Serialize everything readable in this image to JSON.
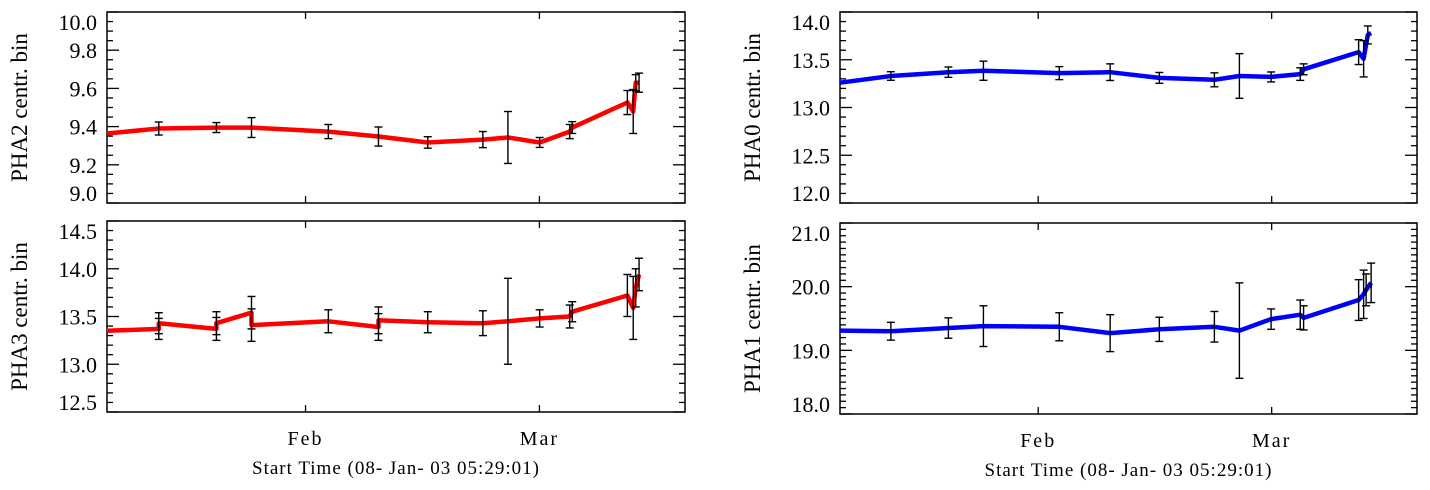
{
  "chart_data": [
    {
      "type": "line",
      "panel": "top-left",
      "ylabel": "PHA2 centr. bin",
      "xlabel": "Start Time (08- Jan- 03 05:29:01)",
      "x_units": "days since start",
      "xlim": [
        0,
        69.2
      ],
      "x_ticks": [
        {
          "value": 23.77,
          "label": "Feb"
        },
        {
          "value": 51.77,
          "label": "Mar"
        }
      ],
      "ylim": [
        9.0,
        10.0
      ],
      "y_major": 0.2,
      "y_minor": 0.05,
      "y_tick_labels": [
        "9.0",
        "9.2",
        "9.4",
        "9.6",
        "9.8",
        "10.0"
      ],
      "color": "#ff0000",
      "points": [
        [
          0,
          9.364,
          null
        ],
        [
          6.2,
          9.39,
          0.034
        ],
        [
          13.1,
          9.395,
          0.026
        ],
        [
          17.3,
          9.395,
          0.052
        ],
        [
          26.5,
          9.374,
          0.037
        ],
        [
          32.5,
          9.348,
          0.05
        ],
        [
          38.4,
          9.317,
          0.03
        ],
        [
          45.0,
          9.332,
          0.042
        ],
        [
          48.0,
          9.343,
          0.136
        ],
        [
          51.8,
          9.317,
          0.026
        ],
        [
          55.4,
          9.374,
          0.037
        ],
        [
          55.7,
          9.395,
          0.031
        ],
        [
          62.3,
          9.526,
          0.063
        ],
        [
          63.0,
          9.479,
          0.115
        ],
        [
          63.3,
          9.63,
          0.042
        ],
        [
          63.7,
          9.63,
          0.05
        ]
      ]
    },
    {
      "type": "line",
      "panel": "bottom-left",
      "ylabel": "PHA3 centr. bin",
      "xlabel": "Start Time (08- Jan- 03 05:29:01)",
      "x_units": "days since start",
      "xlim": [
        0,
        69.2
      ],
      "x_ticks": [
        {
          "value": 23.77,
          "label": "Feb"
        },
        {
          "value": 51.77,
          "label": "Mar"
        }
      ],
      "ylim": [
        12.5,
        14.5
      ],
      "y_major": 0.5,
      "y_minor": 0.1,
      "y_tick_labels": [
        "12.5",
        "13.0",
        "13.5",
        "14.0",
        "14.5"
      ],
      "color": "#ff0000",
      "points": [
        [
          0,
          13.35,
          null
        ],
        [
          6.2,
          13.37,
          0.11
        ],
        [
          6.2,
          13.43,
          0.11
        ],
        [
          13.1,
          13.37,
          0.12
        ],
        [
          13.1,
          13.43,
          0.12
        ],
        [
          17.3,
          13.54,
          0.17
        ],
        [
          17.3,
          13.41,
          0.17
        ],
        [
          26.5,
          13.45,
          0.12
        ],
        [
          32.5,
          13.39,
          0.14
        ],
        [
          32.5,
          13.46,
          0.14
        ],
        [
          38.4,
          13.44,
          0.11
        ],
        [
          45.0,
          13.43,
          0.13
        ],
        [
          48.0,
          13.45,
          0.45
        ],
        [
          51.8,
          13.48,
          0.09
        ],
        [
          55.4,
          13.5,
          0.12
        ],
        [
          55.7,
          13.55,
          0.105
        ],
        [
          62.3,
          13.72,
          0.22
        ],
        [
          63.0,
          13.59,
          0.33
        ],
        [
          63.3,
          13.8,
          0.2
        ],
        [
          63.7,
          13.94,
          0.17
        ]
      ]
    },
    {
      "type": "line",
      "panel": "top-right",
      "ylabel": "PHA0 centr. bin",
      "xlabel": "Start Time (08- Jan- 03 05:29:01)",
      "x_units": "days since start",
      "xlim": [
        0,
        69.2
      ],
      "x_ticks": [
        {
          "value": 23.77,
          "label": "Feb"
        },
        {
          "value": 51.77,
          "label": "Mar"
        }
      ],
      "ylim": [
        12.0,
        14.0
      ],
      "y_major": 0.5,
      "y_minor": 0.1,
      "y_tick_labels": [
        "12.0",
        "12.5",
        "13.0",
        "13.5",
        "14.0"
      ],
      "color": "#0000ff",
      "points": [
        [
          0,
          13.26,
          null
        ],
        [
          6.1,
          13.33,
          0.045
        ],
        [
          13.0,
          13.37,
          0.054
        ],
        [
          17.2,
          13.385,
          0.1
        ],
        [
          26.3,
          13.36,
          0.068
        ],
        [
          32.4,
          13.37,
          0.087
        ],
        [
          38.3,
          13.31,
          0.057
        ],
        [
          44.9,
          13.29,
          0.073
        ],
        [
          47.9,
          13.33,
          0.234
        ],
        [
          51.7,
          13.32,
          0.052
        ],
        [
          55.2,
          13.35,
          0.066
        ],
        [
          55.6,
          13.4,
          0.057
        ],
        [
          62.2,
          13.58,
          0.13
        ],
        [
          62.8,
          13.51,
          0.19
        ],
        [
          63.3,
          13.76,
          0.094
        ],
        [
          63.7,
          13.78,
          null
        ]
      ]
    },
    {
      "type": "line",
      "panel": "bottom-right",
      "ylabel": "PHA1 centr. bin",
      "xlabel": "Start Time (08- Jan- 03 05:29:01)",
      "x_units": "days since start",
      "xlim": [
        0,
        69.2
      ],
      "x_ticks": [
        {
          "value": 23.77,
          "label": "Feb"
        },
        {
          "value": 51.77,
          "label": "Mar"
        }
      ],
      "ylim": [
        18.0,
        21.0
      ],
      "y_major": 1.0,
      "y_minor": 0.1,
      "y_tick_labels": [
        "18.0",
        "19.0",
        "20.0",
        "21.0"
      ],
      "color": "#0000ff",
      "points": [
        [
          0,
          19.31,
          null
        ],
        [
          6.1,
          19.3,
          0.14
        ],
        [
          13.0,
          19.35,
          0.16
        ],
        [
          17.2,
          19.38,
          0.32
        ],
        [
          26.3,
          19.37,
          0.22
        ],
        [
          32.4,
          19.27,
          0.29
        ],
        [
          38.3,
          19.33,
          0.19
        ],
        [
          44.9,
          19.37,
          0.24
        ],
        [
          47.9,
          19.31,
          0.75
        ],
        [
          51.7,
          19.49,
          0.16
        ],
        [
          55.2,
          19.56,
          0.23
        ],
        [
          55.6,
          19.51,
          0.19
        ],
        [
          62.2,
          19.79,
          0.32
        ],
        [
          62.8,
          19.88,
          0.38
        ],
        [
          63.1,
          19.95,
          0.25
        ],
        [
          63.7,
          20.06,
          0.31
        ]
      ]
    }
  ]
}
